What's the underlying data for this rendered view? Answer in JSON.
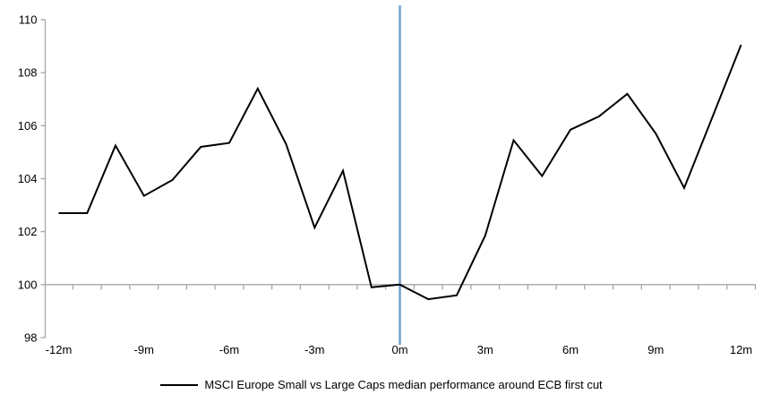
{
  "chart_data": {
    "type": "line",
    "title": "",
    "xlabel": "",
    "ylabel": "",
    "x": [
      -12,
      -11,
      -10,
      -9,
      -8,
      -7,
      -6,
      -5,
      -4,
      -3,
      -2,
      -1,
      0,
      1,
      2,
      3,
      4,
      5,
      6,
      7,
      8,
      9,
      10,
      11,
      12
    ],
    "series": [
      {
        "name": "MSCI Europe Small vs Large Caps median performance around ECB first cut",
        "color": "#000000",
        "values": [
          102.7,
          102.7,
          105.25,
          103.35,
          103.95,
          105.2,
          105.35,
          107.4,
          105.3,
          102.15,
          104.3,
          99.9,
          100.0,
          99.45,
          99.6,
          101.85,
          105.45,
          104.1,
          105.85,
          106.35,
          107.2,
          105.7,
          103.65,
          106.35,
          109.05
        ]
      }
    ],
    "xlim": [
      -12,
      12
    ],
    "ylim": [
      98,
      110
    ],
    "y_ticks": [
      98,
      100,
      102,
      104,
      106,
      108,
      110
    ],
    "y_tick_labels": [
      "98",
      "100",
      "102",
      "104",
      "106",
      "108",
      "110"
    ],
    "x_ticks": [
      -12,
      -9,
      -6,
      -3,
      0,
      3,
      6,
      9,
      12
    ],
    "x_tick_labels": [
      "-12m",
      "-9m",
      "-6m",
      "-3m",
      "0m",
      "3m",
      "6m",
      "9m",
      "12m"
    ],
    "grid": false,
    "baseline_y": 100,
    "event_line_x": 0,
    "legend_position": "bottom-center",
    "colors": {
      "series_line": "#000000",
      "event_line": "#7aa3cc",
      "axis_line": "#a6a6a6",
      "tick_text": "#000000"
    }
  }
}
